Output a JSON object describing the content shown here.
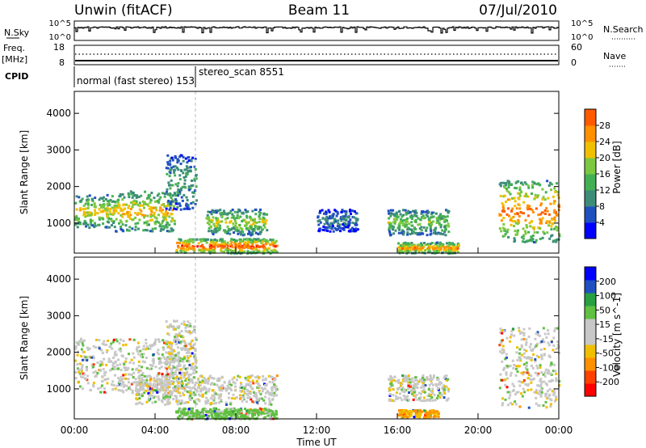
{
  "header": {
    "station": "Unwin (fitACF)",
    "beam": "Beam 11",
    "date": "07/Jul/2010"
  },
  "summary_panels": {
    "nsky_label": "N.Sky",
    "nsky_ticks": [
      "10^5",
      "10^0"
    ],
    "nsearch_label": "N.Search",
    "nsearch_ticks": [
      "10^5",
      "10^0"
    ],
    "freq_label": "Freq.",
    "freq_unit": "[MHz]",
    "freq_ticks": [
      "18",
      "8"
    ],
    "nave_label": "Nave",
    "nave_ticks": [
      "60",
      "0"
    ],
    "cpid_label": "CPID",
    "cpid_segments": [
      {
        "text": "normal (fast stereo) 153",
        "start_hour": 0
      },
      {
        "text": "stereo_scan 8551",
        "start_hour": 6.0
      }
    ]
  },
  "colors": {
    "power_scale": [
      "#0000ff",
      "#2050c0",
      "#3c8c78",
      "#44b054",
      "#7cc840",
      "#f0c000",
      "#ff9000",
      "#ff5a00",
      "#ff0000"
    ],
    "velocity_scale": [
      "#ff0000",
      "#ff4000",
      "#ff9000",
      "#f0c000",
      "#c8c8c8",
      "#c8c8c8",
      "#60c040",
      "#28a040",
      "#2050c0",
      "#0000ff"
    ],
    "gray_hatch": "#c8c8c8"
  },
  "chart_data": [
    {
      "type": "heatmap",
      "title": "",
      "ylabel": "Slant Range [km]",
      "colorbar_label": "Power [dB]",
      "colorbar_ticks": [
        "4",
        "8",
        "12",
        "16",
        "20",
        "24",
        "28"
      ],
      "ylim": [
        180,
        4600
      ],
      "yticks": [
        "1000",
        "2000",
        "3000",
        "4000"
      ],
      "xlim_hours": [
        0,
        24
      ],
      "scatter_regions_power_db": [
        {
          "t_start": 0.0,
          "t_end": 2.0,
          "r_low": 900,
          "r_high": 1800,
          "peak_db": 20
        },
        {
          "t_start": 2.0,
          "t_end": 5.0,
          "r_low": 800,
          "r_high": 1900,
          "peak_db": 22
        },
        {
          "t_start": 4.5,
          "t_end": 6.0,
          "r_low": 1400,
          "r_high": 2900,
          "peak_db": 12
        },
        {
          "t_start": 5.0,
          "t_end": 10.0,
          "r_low": 200,
          "r_high": 600,
          "peak_db": 28
        },
        {
          "t_start": 6.5,
          "t_end": 9.5,
          "r_low": 700,
          "r_high": 1400,
          "peak_db": 18
        },
        {
          "t_start": 12.0,
          "t_end": 14.0,
          "r_low": 800,
          "r_high": 1400,
          "peak_db": 8
        },
        {
          "t_start": 15.5,
          "t_end": 18.5,
          "r_low": 700,
          "r_high": 1400,
          "peak_db": 16
        },
        {
          "t_start": 16.0,
          "t_end": 19.0,
          "r_low": 200,
          "r_high": 500,
          "peak_db": 24
        },
        {
          "t_start": 21.0,
          "t_end": 24.0,
          "r_low": 500,
          "r_high": 2200,
          "peak_db": 26
        }
      ]
    },
    {
      "type": "heatmap",
      "title": "",
      "ylabel": "Slant Range [km]",
      "xlabel": "Time UT",
      "colorbar_label": "Velocity [m s^-1]",
      "colorbar_ticks": [
        "-200",
        "-100",
        "-50",
        "-15",
        "15",
        "50",
        "100",
        "200"
      ],
      "ylim": [
        180,
        4600
      ],
      "yticks": [
        "1000",
        "2000",
        "3000",
        "4000"
      ],
      "xlim_hours": [
        0,
        24
      ],
      "xticks": [
        "00:00",
        "04:00",
        "08:00",
        "12:00",
        "16:00",
        "20:00",
        "00:00"
      ],
      "scatter_regions_velocity": [
        {
          "t_start": 0.0,
          "t_end": 6.0,
          "r_low": 900,
          "r_high": 2400,
          "velocity": 0
        },
        {
          "t_start": 4.5,
          "t_end": 6.0,
          "r_low": 1400,
          "r_high": 2900,
          "velocity": 0
        },
        {
          "t_start": 3.0,
          "t_end": 10.0,
          "r_low": 600,
          "r_high": 1400,
          "velocity": 0
        },
        {
          "t_start": 5.0,
          "t_end": 10.0,
          "r_low": 200,
          "r_high": 500,
          "velocity": 30
        },
        {
          "t_start": 15.5,
          "t_end": 18.5,
          "r_low": 700,
          "r_high": 1400,
          "velocity": 0
        },
        {
          "t_start": 16.0,
          "t_end": 18.0,
          "r_low": 250,
          "r_high": 450,
          "velocity": -50
        },
        {
          "t_start": 21.0,
          "t_end": 24.0,
          "r_low": 500,
          "r_high": 2700,
          "velocity": 0
        }
      ]
    }
  ]
}
